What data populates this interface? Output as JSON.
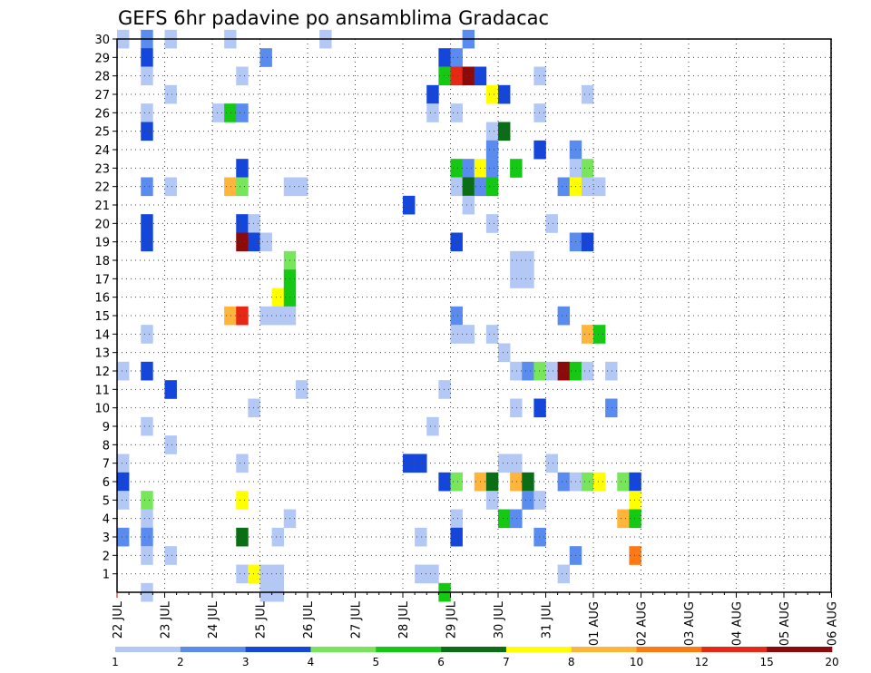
{
  "chart_data": {
    "type": "heatmap",
    "title": "GEFS 6hr padavine po ansamblima Gradacac",
    "xlabel": "",
    "ylabel": "",
    "x_ticks": [
      "22 JUL",
      "23 JUL",
      "24 JUL",
      "25 JUL",
      "26 JUL",
      "27 JUL",
      "28 JUL",
      "29 JUL",
      "30 JUL",
      "31 JUL",
      "01 AUG",
      "02 AUG",
      "03 AUG",
      "04 AUG",
      "05 AUG",
      "06 AUG"
    ],
    "x_range_days": [
      0,
      15
    ],
    "y_ticks": [
      "1",
      "2",
      "3",
      "4",
      "5",
      "6",
      "7",
      "8",
      "9",
      "10",
      "11",
      "12",
      "13",
      "14",
      "15",
      "16",
      "17",
      "18",
      "19",
      "20",
      "21",
      "22",
      "23",
      "24",
      "25",
      "26",
      "27",
      "28",
      "29",
      "30"
    ],
    "y_range": [
      0,
      30
    ],
    "grid": true,
    "colorbar": {
      "labels": [
        "1",
        "2",
        "3",
        "4",
        "5",
        "6",
        "7",
        "8",
        "10",
        "12",
        "15",
        "20"
      ],
      "colors": [
        "#b4c8f5",
        "#5a8cf0",
        "#1446dc",
        "#78e65a",
        "#14c814",
        "#0a6e14",
        "#ffff00",
        "#ffb43c",
        "#ff7814",
        "#e62814",
        "#8c0a0a"
      ]
    },
    "levels_note": "cells: [member, step(6h from 22 JUL 00Z), color class 1-11]",
    "cells": [
      [
        30,
        0,
        1
      ],
      [
        30,
        2,
        2
      ],
      [
        30,
        4,
        1
      ],
      [
        30,
        9,
        1
      ],
      [
        30,
        17,
        1
      ],
      [
        30,
        29,
        2
      ],
      [
        29,
        2,
        3
      ],
      [
        29,
        12,
        2
      ],
      [
        29,
        27,
        3
      ],
      [
        29,
        28,
        2
      ],
      [
        28,
        2,
        1
      ],
      [
        28,
        10,
        1
      ],
      [
        28,
        27,
        5
      ],
      [
        28,
        28,
        10
      ],
      [
        28,
        29,
        11
      ],
      [
        28,
        30,
        3
      ],
      [
        28,
        35,
        1
      ],
      [
        27,
        4,
        1
      ],
      [
        27,
        26,
        3
      ],
      [
        27,
        31,
        7
      ],
      [
        27,
        32,
        3
      ],
      [
        27,
        39,
        1
      ],
      [
        26,
        2,
        1
      ],
      [
        26,
        8,
        1
      ],
      [
        26,
        9,
        5
      ],
      [
        26,
        10,
        2
      ],
      [
        26,
        26,
        1
      ],
      [
        26,
        28,
        1
      ],
      [
        26,
        35,
        1
      ],
      [
        25,
        2,
        3
      ],
      [
        25,
        31,
        1
      ],
      [
        25,
        32,
        6
      ],
      [
        24,
        31,
        2
      ],
      [
        24,
        35,
        3
      ],
      [
        24,
        38,
        2
      ],
      [
        23,
        10,
        3
      ],
      [
        23,
        28,
        5
      ],
      [
        23,
        29,
        2
      ],
      [
        23,
        30,
        7
      ],
      [
        23,
        31,
        2
      ],
      [
        23,
        33,
        5
      ],
      [
        23,
        38,
        1
      ],
      [
        23,
        39,
        4
      ],
      [
        22,
        2,
        2
      ],
      [
        22,
        4,
        1
      ],
      [
        22,
        9,
        8
      ],
      [
        22,
        10,
        4
      ],
      [
        22,
        14,
        1
      ],
      [
        22,
        15,
        1
      ],
      [
        22,
        28,
        1
      ],
      [
        22,
        29,
        6
      ],
      [
        22,
        30,
        2
      ],
      [
        22,
        31,
        5
      ],
      [
        22,
        37,
        2
      ],
      [
        22,
        38,
        7
      ],
      [
        22,
        39,
        1
      ],
      [
        22,
        40,
        1
      ],
      [
        21,
        24,
        3
      ],
      [
        21,
        29,
        1
      ],
      [
        20,
        2,
        3
      ],
      [
        20,
        10,
        3
      ],
      [
        20,
        11,
        1
      ],
      [
        20,
        31,
        1
      ],
      [
        20,
        36,
        1
      ],
      [
        19,
        2,
        3
      ],
      [
        19,
        10,
        11
      ],
      [
        19,
        11,
        3
      ],
      [
        19,
        12,
        1
      ],
      [
        19,
        28,
        3
      ],
      [
        19,
        38,
        2
      ],
      [
        19,
        39,
        3
      ],
      [
        18,
        14,
        4
      ],
      [
        18,
        33,
        1
      ],
      [
        18,
        34,
        1
      ],
      [
        17,
        14,
        5
      ],
      [
        17,
        33,
        1
      ],
      [
        17,
        34,
        1
      ],
      [
        16,
        13,
        7
      ],
      [
        16,
        14,
        5
      ],
      [
        15,
        9,
        8
      ],
      [
        15,
        10,
        10
      ],
      [
        15,
        12,
        1
      ],
      [
        15,
        13,
        1
      ],
      [
        15,
        14,
        1
      ],
      [
        15,
        28,
        2
      ],
      [
        15,
        37,
        2
      ],
      [
        14,
        2,
        1
      ],
      [
        14,
        28,
        1
      ],
      [
        14,
        29,
        1
      ],
      [
        14,
        31,
        1
      ],
      [
        14,
        39,
        8
      ],
      [
        14,
        40,
        5
      ],
      [
        13,
        32,
        1
      ],
      [
        12,
        0,
        1
      ],
      [
        12,
        2,
        3
      ],
      [
        12,
        33,
        1
      ],
      [
        12,
        34,
        2
      ],
      [
        12,
        35,
        4
      ],
      [
        12,
        36,
        1
      ],
      [
        12,
        37,
        11
      ],
      [
        12,
        38,
        5
      ],
      [
        12,
        39,
        1
      ],
      [
        12,
        41,
        1
      ],
      [
        11,
        4,
        3
      ],
      [
        11,
        15,
        1
      ],
      [
        11,
        27,
        1
      ],
      [
        10,
        11,
        1
      ],
      [
        10,
        33,
        1
      ],
      [
        10,
        35,
        3
      ],
      [
        10,
        41,
        2
      ],
      [
        9,
        2,
        1
      ],
      [
        9,
        26,
        1
      ],
      [
        8,
        4,
        1
      ],
      [
        7,
        0,
        1
      ],
      [
        7,
        10,
        1
      ],
      [
        7,
        24,
        3
      ],
      [
        7,
        25,
        3
      ],
      [
        7,
        32,
        1
      ],
      [
        7,
        33,
        1
      ],
      [
        7,
        36,
        1
      ],
      [
        6,
        0,
        3
      ],
      [
        6,
        27,
        3
      ],
      [
        6,
        28,
        4
      ],
      [
        6,
        30,
        8
      ],
      [
        6,
        31,
        6
      ],
      [
        6,
        33,
        8
      ],
      [
        6,
        34,
        6
      ],
      [
        6,
        37,
        2
      ],
      [
        6,
        38,
        1
      ],
      [
        6,
        39,
        4
      ],
      [
        6,
        40,
        7
      ],
      [
        6,
        42,
        4
      ],
      [
        6,
        43,
        3
      ],
      [
        5,
        0,
        1
      ],
      [
        5,
        2,
        4
      ],
      [
        5,
        10,
        7
      ],
      [
        5,
        31,
        1
      ],
      [
        5,
        34,
        2
      ],
      [
        5,
        35,
        1
      ],
      [
        5,
        43,
        7
      ],
      [
        4,
        2,
        1
      ],
      [
        4,
        14,
        1
      ],
      [
        4,
        28,
        1
      ],
      [
        4,
        32,
        5
      ],
      [
        4,
        33,
        2
      ],
      [
        4,
        42,
        8
      ],
      [
        4,
        43,
        5
      ],
      [
        3,
        0,
        2
      ],
      [
        3,
        2,
        2
      ],
      [
        3,
        10,
        6
      ],
      [
        3,
        13,
        1
      ],
      [
        3,
        25,
        1
      ],
      [
        3,
        28,
        3
      ],
      [
        3,
        35,
        2
      ],
      [
        2,
        2,
        1
      ],
      [
        2,
        4,
        1
      ],
      [
        2,
        38,
        2
      ],
      [
        2,
        43,
        9
      ],
      [
        1,
        10,
        1
      ],
      [
        1,
        11,
        7
      ],
      [
        1,
        12,
        1
      ],
      [
        1,
        13,
        1
      ],
      [
        1,
        25,
        1
      ],
      [
        1,
        26,
        1
      ],
      [
        1,
        37,
        1
      ],
      [
        0,
        2,
        1
      ],
      [
        0,
        12,
        1
      ],
      [
        0,
        13,
        1
      ],
      [
        0,
        27,
        5
      ]
    ]
  }
}
